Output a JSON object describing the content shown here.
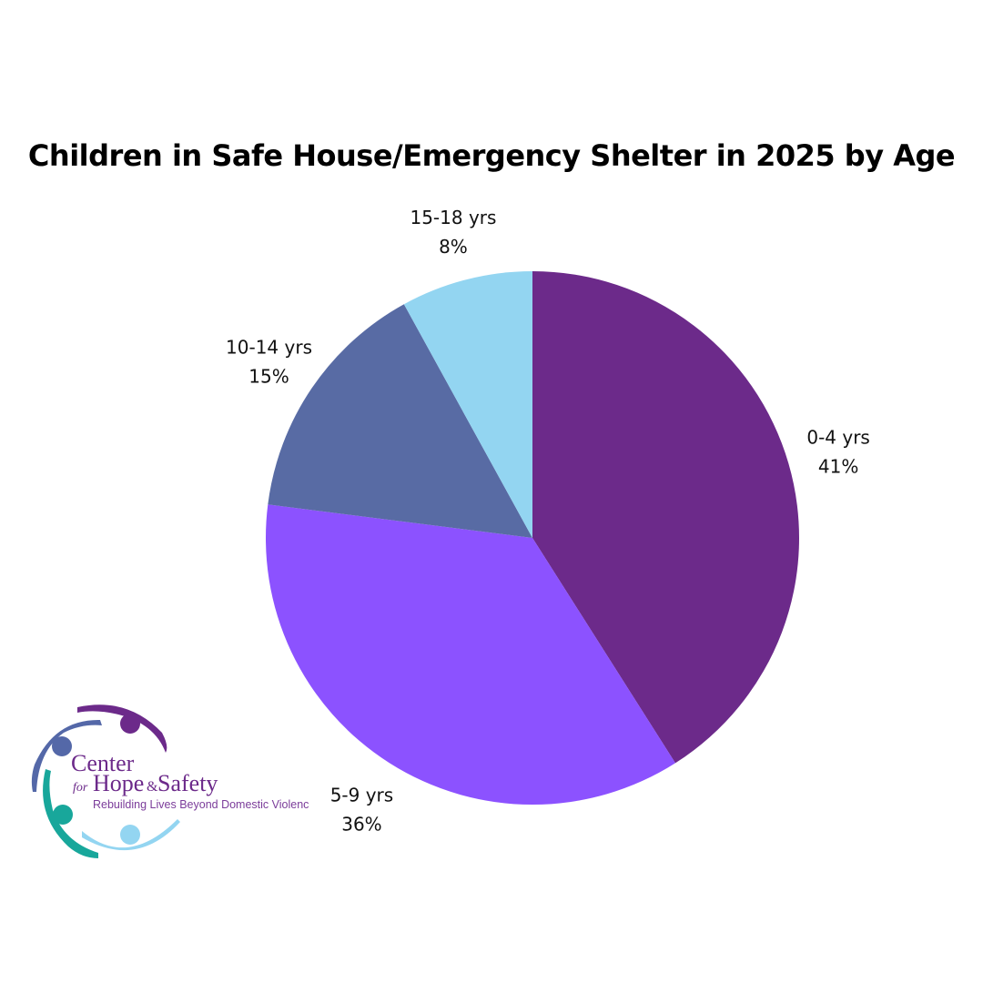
{
  "chart_data": {
    "type": "pie",
    "title": "Children in Safe House/Emergency Shelter in 2025 by Age",
    "slices": [
      {
        "label": "0-4 yrs",
        "value": 41,
        "display": "41%",
        "color": "#6C2A8A"
      },
      {
        "label": "5-9 yrs",
        "value": 36,
        "display": "36%",
        "color": "#8C52FF"
      },
      {
        "label": "10-14 yrs",
        "value": 15,
        "display": "15%",
        "color": "#586BA4"
      },
      {
        "label": "15-18 yrs",
        "value": 8,
        "display": "8%",
        "color": "#93D5F1"
      }
    ],
    "start": "top",
    "direction": "clockwise",
    "legend": "none"
  },
  "logo": {
    "line1": "Center",
    "line2a": "for",
    "line2b": "Hope",
    "line2c": "&",
    "line2d": "Safety",
    "tagline": "Rebuilding Lives Beyond Domestic Violence",
    "colors": {
      "purple": "#6C2A8A",
      "blue": "#5468A8",
      "teal": "#18A79B",
      "light": "#93D5F1"
    }
  }
}
